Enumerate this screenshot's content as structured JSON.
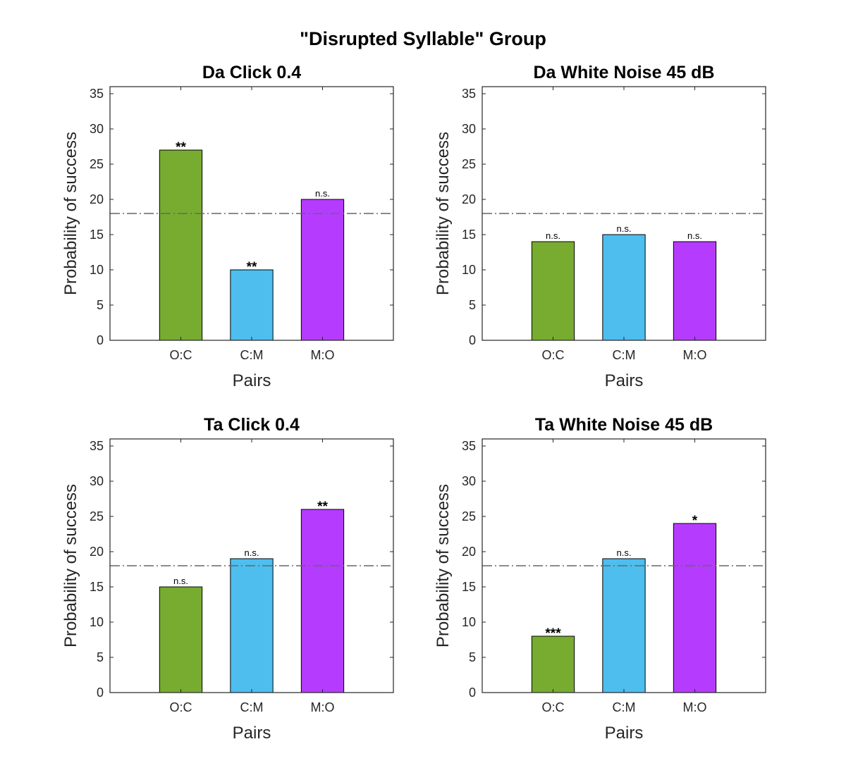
{
  "figure": {
    "title": "\"Disrupted Syllable\" Group"
  },
  "colors": {
    "O:C": "#77AC30",
    "C:M": "#4DBEEE",
    "M:O": "#B53CFF",
    "reference_line": "#666666",
    "axes": "#262626"
  },
  "chart_data": [
    {
      "type": "bar",
      "title": "Da Click 0.4",
      "xlabel": "Pairs",
      "ylabel": "Probability of success",
      "categories": [
        "O:C",
        "C:M",
        "M:O"
      ],
      "values": [
        27,
        10,
        20
      ],
      "annotations": [
        "**",
        "**",
        "n.s."
      ],
      "reference_line": 18,
      "ylim": [
        0,
        36
      ],
      "yticks": [
        0,
        5,
        10,
        15,
        20,
        25,
        30,
        35
      ],
      "grid": false
    },
    {
      "type": "bar",
      "title": "Da White Noise 45 dB",
      "xlabel": "Pairs",
      "ylabel": "Probability of success",
      "categories": [
        "O:C",
        "C:M",
        "M:O"
      ],
      "values": [
        14,
        15,
        14
      ],
      "annotations": [
        "n.s.",
        "n.s.",
        "n.s."
      ],
      "reference_line": 18,
      "ylim": [
        0,
        36
      ],
      "yticks": [
        0,
        5,
        10,
        15,
        20,
        25,
        30,
        35
      ],
      "grid": false
    },
    {
      "type": "bar",
      "title": "Ta Click 0.4",
      "xlabel": "Pairs",
      "ylabel": "Probability of success",
      "categories": [
        "O:C",
        "C:M",
        "M:O"
      ],
      "values": [
        15,
        19,
        26
      ],
      "annotations": [
        "n.s.",
        "n.s.",
        "**"
      ],
      "reference_line": 18,
      "ylim": [
        0,
        36
      ],
      "yticks": [
        0,
        5,
        10,
        15,
        20,
        25,
        30,
        35
      ],
      "grid": false
    },
    {
      "type": "bar",
      "title": "Ta White Noise 45 dB",
      "xlabel": "Pairs",
      "ylabel": "Probability of success",
      "categories": [
        "O:C",
        "C:M",
        "M:O"
      ],
      "values": [
        8,
        19,
        24
      ],
      "annotations": [
        "***",
        "n.s.",
        "*"
      ],
      "reference_line": 18,
      "ylim": [
        0,
        36
      ],
      "yticks": [
        0,
        5,
        10,
        15,
        20,
        25,
        30,
        35
      ],
      "grid": false
    }
  ]
}
